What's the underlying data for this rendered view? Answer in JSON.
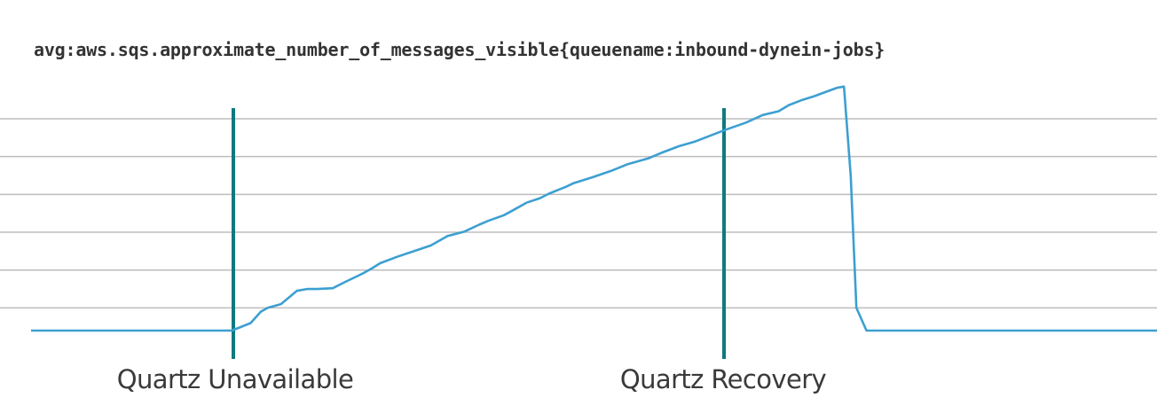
{
  "title": "avg:aws.sqs.approximate_number_of_messages_visible{queuename:inbound-dynein-jobs}",
  "colors": {
    "series": "#3d9fd1",
    "marker": "#0f7a7e",
    "grid": "#bdbdbd",
    "text": "#333333"
  },
  "chart_data": {
    "type": "line",
    "title": "avg:aws.sqs.approximate_number_of_messages_visible{queuename:inbound-dynein-jobs}",
    "xlabel": "",
    "ylabel": "",
    "xlim": [
      0,
      100
    ],
    "ylim": [
      0,
      5.6
    ],
    "yticks_gridlines": [
      0.6,
      1.6,
      2.6,
      3.6,
      4.6,
      5.6
    ],
    "grid": true,
    "legend": "none",
    "series": [
      {
        "values_x": [
          0,
          17.8,
          18.5,
          19.5,
          20.4,
          21.0,
          22.2,
          23.6,
          24.5,
          25.4,
          26.8,
          28.0,
          29.4,
          30.3,
          31.0,
          32.5,
          34.0,
          35.5,
          37.0,
          38.5,
          39.8,
          40.6,
          42.0,
          42.8,
          44.0,
          45.2,
          46.0,
          47.5,
          48.2,
          49.8,
          51.5,
          53.0,
          54.8,
          56.0,
          57.6,
          59.0,
          60.3,
          61.6,
          63.5,
          65.0,
          66.4,
          67.3,
          68.5,
          69.6,
          70.5,
          71.6,
          72.2,
          72.8,
          73.3,
          74.2,
          74.8,
          100
        ],
        "values_y": [
          0,
          0,
          0.08,
          0.2,
          0.5,
          0.6,
          0.7,
          1.05,
          1.1,
          1.1,
          1.12,
          1.3,
          1.5,
          1.65,
          1.78,
          1.95,
          2.1,
          2.25,
          2.5,
          2.62,
          2.8,
          2.9,
          3.05,
          3.18,
          3.38,
          3.5,
          3.62,
          3.8,
          3.9,
          4.05,
          4.22,
          4.4,
          4.55,
          4.7,
          4.88,
          5.0,
          5.15,
          5.3,
          5.5,
          5.7,
          5.8,
          5.96,
          6.1,
          6.2,
          6.3,
          6.42,
          6.45,
          4.1,
          0.6,
          0,
          0,
          0
        ]
      }
    ],
    "annotations": [
      {
        "label": "Quartz Unavailable",
        "x": 18.0
      },
      {
        "label": "Quartz Recovery",
        "x": 61.6
      }
    ]
  }
}
